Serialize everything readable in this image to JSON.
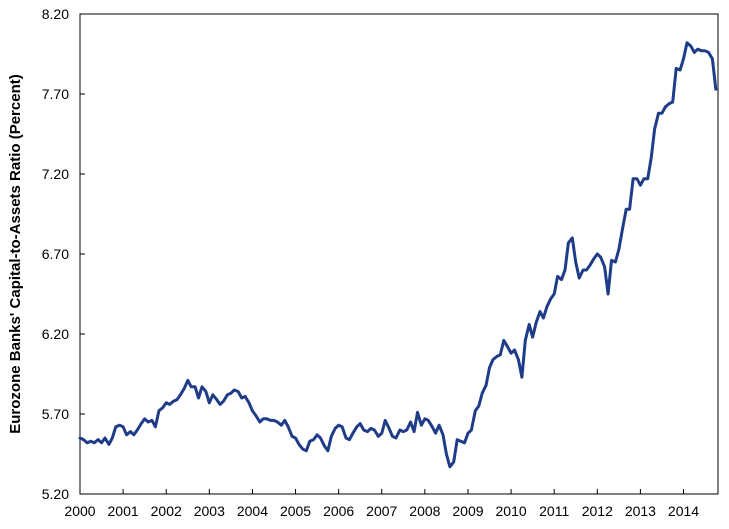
{
  "chart_data": {
    "type": "line",
    "title": "",
    "xlabel": "",
    "ylabel": "Eurozone Banks' Capital-to-Assets  Ratio (Percent)",
    "xlim": [
      2000.0,
      2014.8
    ],
    "ylim": [
      5.2,
      8.2
    ],
    "x_ticks": [
      "2000",
      "2001",
      "2002",
      "2003",
      "2004",
      "2005",
      "2006",
      "2007",
      "2008",
      "2009",
      "2010",
      "2011",
      "2012",
      "2013",
      "2014"
    ],
    "y_ticks": [
      "5.20",
      "5.70",
      "6.20",
      "6.70",
      "7.20",
      "7.70",
      "8.20"
    ],
    "grid": false,
    "line_color": "#1f3c88",
    "series": [
      {
        "x": [
          2000.0,
          2000.08,
          2000.17,
          2000.25,
          2000.33,
          2000.42,
          2000.5,
          2000.58,
          2000.67,
          2000.75,
          2000.83,
          2000.92,
          2001.0,
          2001.08,
          2001.17,
          2001.25,
          2001.33,
          2001.42,
          2001.5,
          2001.58,
          2001.67,
          2001.75,
          2001.83,
          2001.92,
          2002.0,
          2002.08,
          2002.17,
          2002.25,
          2002.33,
          2002.42,
          2002.5,
          2002.58,
          2002.67,
          2002.75,
          2002.83,
          2002.92,
          2003.0,
          2003.08,
          2003.17,
          2003.25,
          2003.33,
          2003.42,
          2003.5,
          2003.58,
          2003.67,
          2003.75,
          2003.83,
          2003.92,
          2004.0,
          2004.08,
          2004.17,
          2004.25,
          2004.33,
          2004.42,
          2004.5,
          2004.58,
          2004.67,
          2004.75,
          2004.83,
          2004.92,
          2005.0,
          2005.08,
          2005.17,
          2005.25,
          2005.33,
          2005.42,
          2005.5,
          2005.58,
          2005.67,
          2005.75,
          2005.83,
          2005.92,
          2006.0,
          2006.08,
          2006.17,
          2006.25,
          2006.33,
          2006.42,
          2006.5,
          2006.58,
          2006.67,
          2006.75,
          2006.83,
          2006.92,
          2007.0,
          2007.08,
          2007.17,
          2007.25,
          2007.33,
          2007.42,
          2007.5,
          2007.58,
          2007.67,
          2007.75,
          2007.83,
          2007.92,
          2008.0,
          2008.08,
          2008.17,
          2008.25,
          2008.33,
          2008.42,
          2008.5,
          2008.58,
          2008.67,
          2008.75,
          2008.83,
          2008.92,
          2009.0,
          2009.08,
          2009.17,
          2009.25,
          2009.33,
          2009.42,
          2009.5,
          2009.58,
          2009.67,
          2009.75,
          2009.83,
          2009.92,
          2010.0,
          2010.08,
          2010.17,
          2010.25,
          2010.33,
          2010.42,
          2010.5,
          2010.58,
          2010.67,
          2010.75,
          2010.83,
          2010.92,
          2011.0,
          2011.08,
          2011.17,
          2011.25,
          2011.33,
          2011.42,
          2011.5,
          2011.58,
          2011.67,
          2011.75,
          2011.83,
          2011.92,
          2012.0,
          2012.08,
          2012.17,
          2012.25,
          2012.33,
          2012.42,
          2012.5,
          2012.58,
          2012.67,
          2012.75,
          2012.83,
          2012.92,
          2013.0,
          2013.08,
          2013.17,
          2013.25,
          2013.33,
          2013.42,
          2013.5,
          2013.58,
          2013.67,
          2013.75,
          2013.83,
          2013.92,
          2014.0,
          2014.08,
          2014.17,
          2014.25,
          2014.33,
          2014.42,
          2014.5,
          2014.58,
          2014.67,
          2014.75
        ],
        "values": [
          5.55,
          5.54,
          5.52,
          5.53,
          5.52,
          5.54,
          5.52,
          5.55,
          5.51,
          5.55,
          5.62,
          5.63,
          5.62,
          5.57,
          5.59,
          5.57,
          5.6,
          5.64,
          5.67,
          5.65,
          5.66,
          5.62,
          5.72,
          5.74,
          5.77,
          5.76,
          5.78,
          5.79,
          5.82,
          5.86,
          5.91,
          5.87,
          5.87,
          5.8,
          5.87,
          5.84,
          5.77,
          5.82,
          5.79,
          5.76,
          5.78,
          5.82,
          5.83,
          5.85,
          5.84,
          5.8,
          5.81,
          5.77,
          5.72,
          5.69,
          5.65,
          5.67,
          5.67,
          5.66,
          5.66,
          5.65,
          5.63,
          5.66,
          5.62,
          5.56,
          5.55,
          5.51,
          5.48,
          5.47,
          5.53,
          5.54,
          5.57,
          5.55,
          5.5,
          5.47,
          5.56,
          5.61,
          5.63,
          5.62,
          5.55,
          5.54,
          5.58,
          5.62,
          5.64,
          5.6,
          5.59,
          5.61,
          5.6,
          5.56,
          5.58,
          5.66,
          5.61,
          5.56,
          5.55,
          5.6,
          5.59,
          5.6,
          5.65,
          5.59,
          5.71,
          5.63,
          5.67,
          5.66,
          5.62,
          5.58,
          5.63,
          5.57,
          5.45,
          5.37,
          5.4,
          5.54,
          5.53,
          5.52,
          5.58,
          5.6,
          5.72,
          5.75,
          5.83,
          5.88,
          5.99,
          6.04,
          6.06,
          6.07,
          6.16,
          6.12,
          6.08,
          6.1,
          6.04,
          5.93,
          6.16,
          6.26,
          6.18,
          6.27,
          6.34,
          6.3,
          6.37,
          6.42,
          6.45,
          6.56,
          6.54,
          6.6,
          6.77,
          6.8,
          6.65,
          6.55,
          6.6,
          6.6,
          6.63,
          6.67,
          6.7,
          6.68,
          6.62,
          6.45,
          6.66,
          6.65,
          6.73,
          6.85,
          6.98,
          6.98,
          7.17,
          7.17,
          7.13,
          7.17,
          7.17,
          7.3,
          7.48,
          7.58,
          7.58,
          7.62,
          7.64,
          7.65,
          7.86,
          7.85,
          7.92,
          8.02,
          8.0,
          7.96,
          7.98,
          7.97,
          7.97,
          7.96,
          7.92,
          7.73
        ]
      }
    ]
  }
}
